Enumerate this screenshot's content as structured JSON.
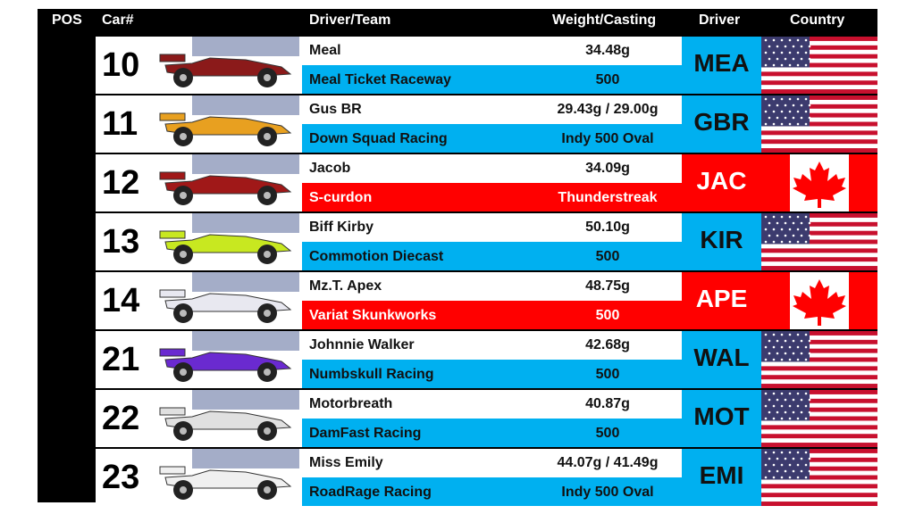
{
  "header": {
    "pos": "POS",
    "car": "Car#",
    "driver_team": "Driver/Team",
    "weight_casting": "Weight/Casting",
    "driver": "Driver",
    "country": "Country"
  },
  "rows": [
    {
      "car": "10",
      "driver": "Meal",
      "team": "Meal Ticket Raceway",
      "weight": "34.48g",
      "casting": "500",
      "code": "MEA",
      "color": "#00b0f0"
    },
    {
      "car": "11",
      "driver": "Gus BR",
      "team": "Down Squad Racing",
      "weight": "29.43g / 29.00g",
      "casting": "Indy 500 Oval",
      "code": "GBR",
      "color": "#00b0f0"
    },
    {
      "car": "12",
      "driver": "Jacob",
      "team": "S-curdon",
      "weight": "34.09g",
      "casting": "Thunderstreak",
      "code": "JAC",
      "color": "#ff0000"
    },
    {
      "car": "13",
      "driver": "Biff Kirby",
      "team": "Commotion Diecast",
      "weight": "50.10g",
      "casting": "500",
      "code": "KIR",
      "color": "#00b0f0"
    },
    {
      "car": "14",
      "driver": "Mz.T. Apex",
      "team": "Variat Skunkworks",
      "weight": "48.75g",
      "casting": "500",
      "code": "APE",
      "color": "#ff0000"
    },
    {
      "car": "21",
      "driver": "Johnnie Walker",
      "team": "Numbskull Racing",
      "weight": "42.68g",
      "casting": "500",
      "code": "WAL",
      "color": "#00b0f0"
    },
    {
      "car": "22",
      "driver": "Motorbreath",
      "team": "DamFast Racing",
      "weight": "40.87g",
      "casting": "500",
      "code": "MOT",
      "color": "#00b0f0"
    },
    {
      "car": "23",
      "driver": "Miss Emily",
      "team": "RoadRage Racing",
      "weight": "44.07g / 41.49g",
      "casting": "Indy 500 Oval",
      "code": "EMI",
      "color": "#00b0f0"
    }
  ]
}
